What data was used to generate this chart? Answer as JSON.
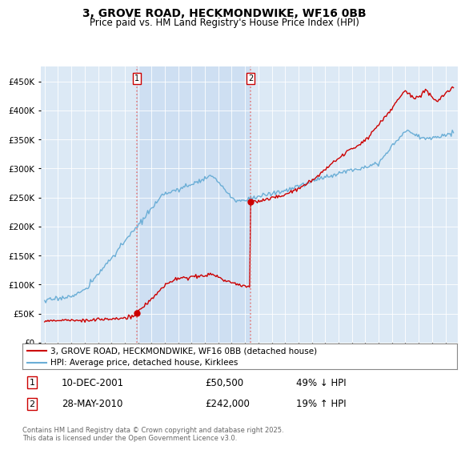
{
  "title": "3, GROVE ROAD, HECKMONDWIKE, WF16 0BB",
  "subtitle": "Price paid vs. HM Land Registry's House Price Index (HPI)",
  "legend_label_red": "3, GROVE ROAD, HECKMONDWIKE, WF16 0BB (detached house)",
  "legend_label_blue": "HPI: Average price, detached house, Kirklees",
  "transaction1_date": "10-DEC-2001",
  "transaction1_price": 50500,
  "transaction1_label": "49% ↓ HPI",
  "transaction2_date": "28-MAY-2010",
  "transaction2_price": 242000,
  "transaction2_label": "19% ↑ HPI",
  "footer": "Contains HM Land Registry data © Crown copyright and database right 2025.\nThis data is licensed under the Open Government Licence v3.0.",
  "plot_bg": "#dce9f5",
  "ylim": [
    0,
    475000
  ],
  "yticks": [
    0,
    50000,
    100000,
    150000,
    200000,
    250000,
    300000,
    350000,
    400000,
    450000
  ],
  "transaction1_year": 2001.92,
  "transaction2_year": 2010.42,
  "red_color": "#cc0000",
  "blue_color": "#6baed6",
  "shade_color": "#c6d9f0"
}
